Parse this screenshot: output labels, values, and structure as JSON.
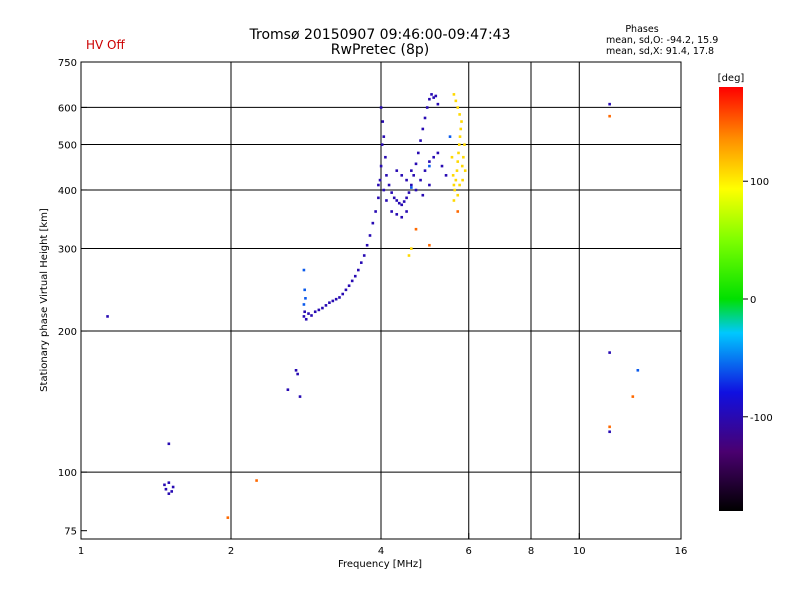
{
  "status": {
    "hv_text": "HV Off",
    "hv_color": "#cc0000"
  },
  "phases_box": {
    "header": "Phases",
    "line_o": "mean, sd,O: -94.2, 15.9",
    "line_x": "mean, sd,X:  91.4, 17.8"
  },
  "chart_data": {
    "type": "scatter",
    "title": "Tromsø 20150907 09:46:00-09:47:43",
    "subtitle": "RwPretec (8p)",
    "xlabel": "Frequency [MHz]",
    "ylabel": "Stationary phase Virtual Height [km]",
    "x_scale": "log",
    "y_scale": "log",
    "xlim": [
      1,
      16
    ],
    "ylim": [
      72,
      750
    ],
    "x_ticks": [
      1,
      2,
      4,
      6,
      8,
      10,
      16
    ],
    "x_tick_labels": [
      "1",
      "2",
      "4",
      "6",
      "8",
      "10",
      "16"
    ],
    "x_gridlines": [
      2,
      4,
      6,
      8,
      10
    ],
    "y_ticks": [
      75,
      100,
      200,
      300,
      400,
      500,
      600,
      750
    ],
    "y_tick_labels": [
      "75",
      "100",
      "200",
      "300",
      "400",
      "500",
      "600",
      "750"
    ],
    "y_gridlines": [
      100,
      200,
      300,
      400,
      500,
      600
    ],
    "grid": true,
    "colorbar": {
      "label": "[deg]",
      "range": [
        -180,
        180
      ],
      "ticks": [
        100,
        0,
        -100
      ],
      "tick_labels": [
        "100",
        "0",
        "-100"
      ]
    },
    "series": [
      {
        "mode": "O",
        "color_value": -100,
        "points": [
          [
            1.13,
            215
          ],
          [
            1.5,
            115
          ],
          [
            1.47,
            94
          ],
          [
            1.48,
            92
          ],
          [
            1.5,
            95
          ],
          [
            1.52,
            91
          ],
          [
            1.53,
            93
          ],
          [
            1.5,
            90
          ],
          [
            2.6,
            150
          ],
          [
            2.75,
            145
          ],
          [
            2.7,
            165
          ],
          [
            2.72,
            162
          ],
          [
            2.8,
            215
          ],
          [
            2.81,
            220
          ],
          [
            2.83,
            212
          ],
          [
            2.86,
            218
          ],
          [
            2.9,
            216
          ],
          [
            2.95,
            220
          ],
          [
            3.0,
            222
          ],
          [
            3.05,
            224
          ],
          [
            3.1,
            227
          ],
          [
            3.15,
            230
          ],
          [
            3.2,
            232
          ],
          [
            3.25,
            234
          ],
          [
            3.3,
            236
          ],
          [
            3.35,
            240
          ],
          [
            3.4,
            245
          ],
          [
            3.45,
            250
          ],
          [
            3.5,
            256
          ],
          [
            3.55,
            262
          ],
          [
            3.6,
            270
          ],
          [
            3.65,
            280
          ],
          [
            3.7,
            290
          ],
          [
            3.75,
            305
          ],
          [
            3.8,
            320
          ],
          [
            3.85,
            340
          ],
          [
            3.9,
            360
          ],
          [
            3.95,
            385
          ],
          [
            3.98,
            420
          ],
          [
            4.0,
            450
          ],
          [
            4.02,
            500
          ],
          [
            4.03,
            560
          ],
          [
            4.0,
            600
          ],
          [
            4.05,
            520
          ],
          [
            4.08,
            470
          ],
          [
            4.1,
            430
          ],
          [
            4.15,
            410
          ],
          [
            4.2,
            395
          ],
          [
            4.25,
            385
          ],
          [
            4.3,
            380
          ],
          [
            4.35,
            375
          ],
          [
            4.4,
            372
          ],
          [
            4.45,
            378
          ],
          [
            4.5,
            385
          ],
          [
            4.55,
            395
          ],
          [
            4.6,
            410
          ],
          [
            4.65,
            430
          ],
          [
            4.7,
            455
          ],
          [
            4.75,
            480
          ],
          [
            4.8,
            510
          ],
          [
            4.85,
            540
          ],
          [
            4.9,
            570
          ],
          [
            4.95,
            600
          ],
          [
            5.0,
            625
          ],
          [
            5.05,
            640
          ],
          [
            5.1,
            630
          ],
          [
            5.15,
            635
          ],
          [
            5.2,
            610
          ],
          [
            4.3,
            440
          ],
          [
            4.4,
            430
          ],
          [
            4.5,
            420
          ],
          [
            4.6,
            440
          ],
          [
            4.2,
            360
          ],
          [
            4.3,
            355
          ],
          [
            4.4,
            350
          ],
          [
            4.5,
            360
          ],
          [
            4.1,
            380
          ],
          [
            4.05,
            400
          ],
          [
            3.95,
            410
          ],
          [
            4.7,
            400
          ],
          [
            4.8,
            420
          ],
          [
            4.9,
            440
          ],
          [
            5.0,
            460
          ],
          [
            5.1,
            470
          ],
          [
            5.2,
            480
          ],
          [
            5.3,
            450
          ],
          [
            5.4,
            430
          ],
          [
            5.0,
            410
          ],
          [
            4.85,
            390
          ],
          [
            11.5,
            180
          ],
          [
            11.5,
            122
          ],
          [
            11.5,
            610
          ]
        ]
      },
      {
        "mode": "O-edge",
        "color_value": -60,
        "points": [
          [
            2.8,
            270
          ],
          [
            2.81,
            245
          ],
          [
            2.82,
            235
          ],
          [
            2.8,
            228
          ],
          [
            13.1,
            165
          ],
          [
            4.6,
            405
          ],
          [
            5.0,
            450
          ],
          [
            5.5,
            520
          ]
        ]
      },
      {
        "mode": "X",
        "color_value": 110,
        "points": [
          [
            5.6,
            380
          ],
          [
            5.62,
            400
          ],
          [
            5.65,
            420
          ],
          [
            5.68,
            440
          ],
          [
            5.7,
            460
          ],
          [
            5.72,
            480
          ],
          [
            5.74,
            500
          ],
          [
            5.76,
            520
          ],
          [
            5.78,
            540
          ],
          [
            5.8,
            560
          ],
          [
            5.75,
            580
          ],
          [
            5.7,
            600
          ],
          [
            5.65,
            620
          ],
          [
            5.6,
            640
          ],
          [
            5.55,
            470
          ],
          [
            5.58,
            430
          ],
          [
            5.6,
            410
          ],
          [
            5.82,
            450
          ],
          [
            5.85,
            470
          ],
          [
            5.83,
            420
          ],
          [
            5.7,
            390
          ],
          [
            5.75,
            410
          ],
          [
            5.9,
            440
          ],
          [
            5.88,
            500
          ],
          [
            4.55,
            290
          ],
          [
            4.6,
            300
          ]
        ]
      },
      {
        "mode": "outliers",
        "color_value": 150,
        "points": [
          [
            1.97,
            80
          ],
          [
            2.25,
            96
          ],
          [
            4.7,
            330
          ],
          [
            5.0,
            305
          ],
          [
            5.7,
            360
          ],
          [
            11.5,
            125
          ],
          [
            11.5,
            575
          ],
          [
            12.8,
            145
          ]
        ]
      }
    ]
  }
}
